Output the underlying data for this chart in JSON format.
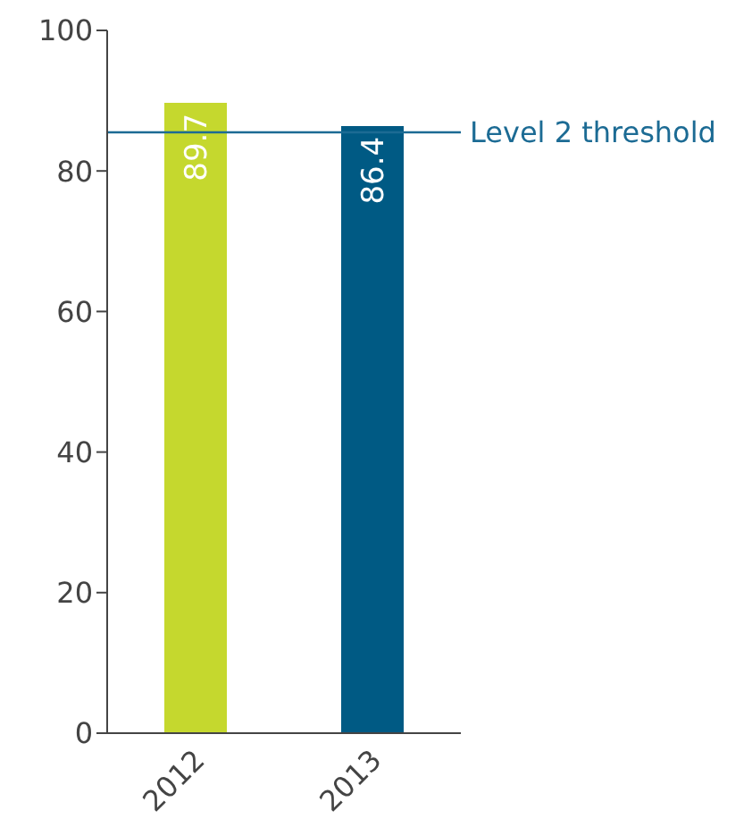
{
  "chart_data": {
    "type": "bar",
    "categories": [
      "2012",
      "2013"
    ],
    "values": [
      89.7,
      86.4
    ],
    "colors": [
      "#c5d82e",
      "#005a84"
    ],
    "ylim": [
      0,
      100
    ],
    "yticks": [
      0,
      20,
      40,
      60,
      80,
      100
    ],
    "grid": false,
    "data_labels": true,
    "ref_lines": [
      {
        "axis": "y",
        "value": 85.5,
        "label": "Level 2 threshold",
        "color": "#1c6b94"
      }
    ]
  }
}
